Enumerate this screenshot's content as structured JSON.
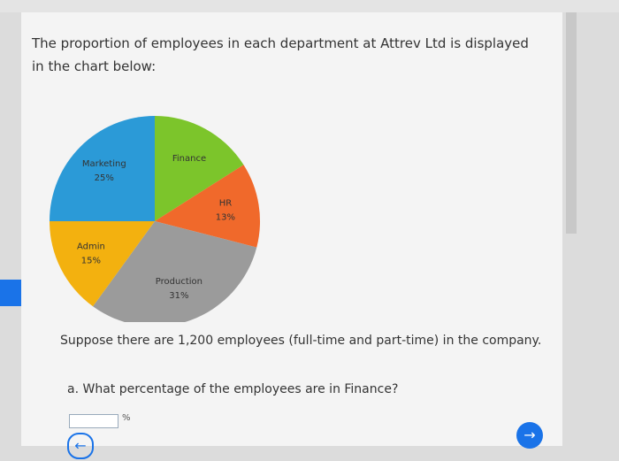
{
  "question": {
    "intro": "The proportion of employees in each department at Attrev Ltd is displayed in the chart below:",
    "context": "Suppose there are 1,200 employees (full-time and part-time) in the company.",
    "part_a": "a. What percentage of the employees are in Finance?",
    "answer_unit": "%"
  },
  "chart_data": {
    "type": "pie",
    "categories": [
      "Finance",
      "HR",
      "Production",
      "Admin",
      "Marketing"
    ],
    "values": [
      16,
      13,
      31,
      15,
      25
    ],
    "value_labels": [
      null,
      "13%",
      "31%",
      "15%",
      "25%"
    ],
    "colors": [
      "#7cc52b",
      "#f0692b",
      "#9b9b9b",
      "#f3b10f",
      "#2b9ad7"
    ]
  }
}
